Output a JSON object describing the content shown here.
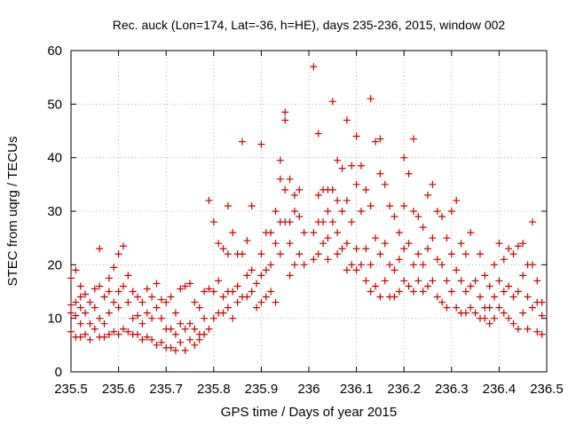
{
  "chart_data": {
    "type": "scatter",
    "title": "Rec. auck (Lon=174, Lat=-36, h=HE), days 235-236, 2015, window 002",
    "xlabel": "GPS time / Days of year 2015",
    "ylabel": "STEC from uqrg / TECUs",
    "xlim": [
      235.5,
      236.5
    ],
    "ylim": [
      0,
      60
    ],
    "x_ticks": [
      "235.5",
      "235.6",
      "235.7",
      "235.8",
      "235.9",
      "236",
      "236.1",
      "236.2",
      "236.3",
      "236.4",
      "236.5"
    ],
    "y_ticks": [
      "0",
      "10",
      "20",
      "30",
      "40",
      "50",
      "60"
    ],
    "grid": true,
    "marker": "+",
    "series": [
      {
        "color": "#cc0000",
        "points": [
          [
            235.5,
            17.5
          ],
          [
            235.5,
            12.5
          ],
          [
            235.5,
            11
          ],
          [
            235.5,
            7.5
          ],
          [
            235.51,
            19
          ],
          [
            235.51,
            13
          ],
          [
            235.51,
            10.5
          ],
          [
            235.51,
            6.5
          ],
          [
            235.52,
            16
          ],
          [
            235.52,
            14
          ],
          [
            235.52,
            12
          ],
          [
            235.52,
            9
          ],
          [
            235.52,
            6.5
          ],
          [
            235.53,
            14.5
          ],
          [
            235.53,
            11
          ],
          [
            235.53,
            7
          ],
          [
            235.54,
            13
          ],
          [
            235.54,
            9
          ],
          [
            235.54,
            6
          ],
          [
            235.55,
            15.5
          ],
          [
            235.55,
            12
          ],
          [
            235.55,
            8
          ],
          [
            235.56,
            23
          ],
          [
            235.56,
            16
          ],
          [
            235.56,
            10
          ],
          [
            235.56,
            6.5
          ],
          [
            235.57,
            14
          ],
          [
            235.57,
            9
          ],
          [
            235.57,
            6.5
          ],
          [
            235.58,
            17.5
          ],
          [
            235.58,
            15
          ],
          [
            235.58,
            11
          ],
          [
            235.58,
            7
          ],
          [
            235.59,
            19.5
          ],
          [
            235.59,
            13
          ],
          [
            235.59,
            7.5
          ],
          [
            235.6,
            22
          ],
          [
            235.6,
            15
          ],
          [
            235.6,
            12
          ],
          [
            235.6,
            7
          ],
          [
            235.61,
            23.5
          ],
          [
            235.61,
            16
          ],
          [
            235.61,
            8
          ],
          [
            235.62,
            18
          ],
          [
            235.62,
            13
          ],
          [
            235.62,
            7.5
          ],
          [
            235.63,
            15
          ],
          [
            235.63,
            10
          ],
          [
            235.63,
            7
          ],
          [
            235.64,
            14
          ],
          [
            235.64,
            10.5
          ],
          [
            235.64,
            7
          ],
          [
            235.65,
            13
          ],
          [
            235.65,
            9
          ],
          [
            235.65,
            6
          ],
          [
            235.66,
            15.5
          ],
          [
            235.66,
            11
          ],
          [
            235.66,
            6.5
          ],
          [
            235.67,
            14
          ],
          [
            235.67,
            10
          ],
          [
            235.67,
            6
          ],
          [
            235.68,
            16.5
          ],
          [
            235.68,
            12
          ],
          [
            235.68,
            5
          ],
          [
            235.69,
            13.5
          ],
          [
            235.69,
            10
          ],
          [
            235.69,
            5.5
          ],
          [
            235.7,
            13
          ],
          [
            235.7,
            8
          ],
          [
            235.7,
            4.5
          ],
          [
            235.71,
            14
          ],
          [
            235.71,
            8
          ],
          [
            235.71,
            4.5
          ],
          [
            235.72,
            11
          ],
          [
            235.72,
            7
          ],
          [
            235.72,
            4
          ],
          [
            235.73,
            15.5
          ],
          [
            235.73,
            9
          ],
          [
            235.73,
            5.5
          ],
          [
            235.74,
            16
          ],
          [
            235.74,
            8
          ],
          [
            235.74,
            4
          ],
          [
            235.75,
            16.5
          ],
          [
            235.75,
            9
          ],
          [
            235.75,
            6
          ],
          [
            235.76,
            13
          ],
          [
            235.76,
            8
          ],
          [
            235.76,
            5
          ],
          [
            235.77,
            12
          ],
          [
            235.77,
            7
          ],
          [
            235.77,
            6
          ],
          [
            235.78,
            15
          ],
          [
            235.78,
            10
          ],
          [
            235.78,
            7
          ],
          [
            235.79,
            32
          ],
          [
            235.79,
            15.5
          ],
          [
            235.79,
            8
          ],
          [
            235.8,
            28
          ],
          [
            235.8,
            15
          ],
          [
            235.8,
            10
          ],
          [
            235.81,
            24
          ],
          [
            235.81,
            17
          ],
          [
            235.81,
            11
          ],
          [
            235.82,
            23
          ],
          [
            235.82,
            14
          ],
          [
            235.82,
            11
          ],
          [
            235.83,
            31
          ],
          [
            235.83,
            22
          ],
          [
            235.83,
            15
          ],
          [
            235.83,
            12
          ],
          [
            235.84,
            26
          ],
          [
            235.84,
            15
          ],
          [
            235.84,
            10
          ],
          [
            235.85,
            22
          ],
          [
            235.85,
            16
          ],
          [
            235.85,
            13
          ],
          [
            235.86,
            43
          ],
          [
            235.86,
            22
          ],
          [
            235.86,
            14
          ],
          [
            235.87,
            24.5
          ],
          [
            235.87,
            18
          ],
          [
            235.87,
            14
          ],
          [
            235.88,
            31
          ],
          [
            235.88,
            19
          ],
          [
            235.88,
            15
          ],
          [
            235.89,
            16.5
          ],
          [
            235.89,
            12
          ],
          [
            235.9,
            42.5
          ],
          [
            235.9,
            22
          ],
          [
            235.9,
            18
          ],
          [
            235.9,
            13
          ],
          [
            235.91,
            26
          ],
          [
            235.91,
            19
          ],
          [
            235.91,
            14
          ],
          [
            235.92,
            26
          ],
          [
            235.92,
            20
          ],
          [
            235.92,
            15
          ],
          [
            235.93,
            30
          ],
          [
            235.93,
            24
          ],
          [
            235.93,
            13
          ],
          [
            235.94,
            39.5
          ],
          [
            235.94,
            36
          ],
          [
            235.94,
            28
          ],
          [
            235.94,
            22
          ],
          [
            235.95,
            48.5
          ],
          [
            235.95,
            47
          ],
          [
            235.95,
            34
          ],
          [
            235.95,
            28
          ],
          [
            235.96,
            36
          ],
          [
            235.96,
            28
          ],
          [
            235.96,
            24
          ],
          [
            235.96,
            18
          ],
          [
            235.97,
            33
          ],
          [
            235.97,
            30
          ],
          [
            235.97,
            20
          ],
          [
            235.98,
            34
          ],
          [
            235.98,
            29
          ],
          [
            235.98,
            22
          ],
          [
            235.99,
            26
          ],
          [
            235.99,
            20
          ],
          [
            236.01,
            57
          ],
          [
            236.01,
            26
          ],
          [
            236.01,
            21
          ],
          [
            236.02,
            44.5
          ],
          [
            236.02,
            33
          ],
          [
            236.02,
            28
          ],
          [
            236.02,
            22
          ],
          [
            236.03,
            34
          ],
          [
            236.03,
            28
          ],
          [
            236.03,
            24
          ],
          [
            236.04,
            34
          ],
          [
            236.04,
            30
          ],
          [
            236.04,
            25
          ],
          [
            236.04,
            21
          ],
          [
            236.05,
            50.5
          ],
          [
            236.05,
            34
          ],
          [
            236.05,
            28
          ],
          [
            236.06,
            39.5
          ],
          [
            236.06,
            32
          ],
          [
            236.06,
            26
          ],
          [
            236.06,
            22
          ],
          [
            236.07,
            38
          ],
          [
            236.07,
            30
          ],
          [
            236.07,
            23
          ],
          [
            236.08,
            47
          ],
          [
            236.08,
            32
          ],
          [
            236.08,
            24
          ],
          [
            236.08,
            19
          ],
          [
            236.09,
            38.5
          ],
          [
            236.09,
            28
          ],
          [
            236.09,
            20
          ],
          [
            236.1,
            44
          ],
          [
            236.1,
            35
          ],
          [
            236.1,
            23
          ],
          [
            236.1,
            19
          ],
          [
            236.11,
            38.5
          ],
          [
            236.11,
            30
          ],
          [
            236.11,
            20
          ],
          [
            236.12,
            34
          ],
          [
            236.12,
            23
          ],
          [
            236.12,
            17
          ],
          [
            236.13,
            51
          ],
          [
            236.13,
            31
          ],
          [
            236.13,
            20
          ],
          [
            236.13,
            15
          ],
          [
            236.14,
            43
          ],
          [
            236.14,
            25
          ],
          [
            236.14,
            16
          ],
          [
            236.15,
            43.5
          ],
          [
            236.15,
            37
          ],
          [
            236.15,
            22
          ],
          [
            236.15,
            14
          ],
          [
            236.16,
            35
          ],
          [
            236.16,
            24
          ],
          [
            236.16,
            17
          ],
          [
            236.17,
            31
          ],
          [
            236.17,
            20
          ],
          [
            236.17,
            14
          ],
          [
            236.18,
            29
          ],
          [
            236.18,
            19
          ],
          [
            236.18,
            14
          ],
          [
            236.19,
            26
          ],
          [
            236.19,
            21
          ],
          [
            236.19,
            15
          ],
          [
            236.2,
            40
          ],
          [
            236.2,
            31
          ],
          [
            236.2,
            23
          ],
          [
            236.2,
            17
          ],
          [
            236.21,
            37
          ],
          [
            236.21,
            24
          ],
          [
            236.21,
            16
          ],
          [
            236.22,
            43.5
          ],
          [
            236.22,
            30
          ],
          [
            236.22,
            20
          ],
          [
            236.22,
            15
          ],
          [
            236.23,
            29
          ],
          [
            236.23,
            22
          ],
          [
            236.23,
            17
          ],
          [
            236.24,
            27
          ],
          [
            236.24,
            20
          ],
          [
            236.24,
            15
          ],
          [
            236.25,
            33
          ],
          [
            236.25,
            23
          ],
          [
            236.25,
            16
          ],
          [
            236.26,
            35
          ],
          [
            236.26,
            25
          ],
          [
            236.26,
            17
          ],
          [
            236.27,
            30
          ],
          [
            236.27,
            21
          ],
          [
            236.27,
            14
          ],
          [
            236.28,
            29
          ],
          [
            236.28,
            20
          ],
          [
            236.28,
            13
          ],
          [
            236.29,
            25
          ],
          [
            236.29,
            17
          ],
          [
            236.29,
            12
          ],
          [
            236.3,
            30
          ],
          [
            236.3,
            22
          ],
          [
            236.3,
            15
          ],
          [
            236.31,
            32
          ],
          [
            236.31,
            19
          ],
          [
            236.31,
            12
          ],
          [
            236.32,
            24
          ],
          [
            236.32,
            17
          ],
          [
            236.32,
            11
          ],
          [
            236.33,
            22
          ],
          [
            236.33,
            15
          ],
          [
            236.33,
            11
          ],
          [
            236.34,
            26
          ],
          [
            236.34,
            16
          ],
          [
            236.34,
            12
          ],
          [
            236.35,
            17
          ],
          [
            236.35,
            11
          ],
          [
            236.36,
            22
          ],
          [
            236.36,
            14
          ],
          [
            236.36,
            10
          ],
          [
            236.37,
            18
          ],
          [
            236.37,
            12
          ],
          [
            236.37,
            10
          ],
          [
            236.38,
            16
          ],
          [
            236.38,
            12
          ],
          [
            236.38,
            9
          ],
          [
            236.39,
            20
          ],
          [
            236.39,
            14
          ],
          [
            236.39,
            10
          ],
          [
            236.4,
            24
          ],
          [
            236.4,
            17
          ],
          [
            236.4,
            12
          ],
          [
            236.41,
            21
          ],
          [
            236.41,
            15
          ],
          [
            236.41,
            11
          ],
          [
            236.42,
            23
          ],
          [
            236.42,
            16
          ],
          [
            236.42,
            10
          ],
          [
            236.43,
            22
          ],
          [
            236.43,
            14
          ],
          [
            236.43,
            9
          ],
          [
            236.44,
            23.5
          ],
          [
            236.44,
            15
          ],
          [
            236.44,
            8
          ],
          [
            236.45,
            24
          ],
          [
            236.45,
            18
          ],
          [
            236.45,
            11
          ],
          [
            236.46,
            20
          ],
          [
            236.46,
            14
          ],
          [
            236.46,
            8
          ],
          [
            236.47,
            28
          ],
          [
            236.47,
            20
          ],
          [
            236.47,
            12
          ],
          [
            236.48,
            17
          ],
          [
            236.48,
            13
          ],
          [
            236.48,
            7.5
          ],
          [
            236.49,
            13
          ],
          [
            236.49,
            10.5
          ],
          [
            236.49,
            7
          ]
        ]
      }
    ]
  }
}
